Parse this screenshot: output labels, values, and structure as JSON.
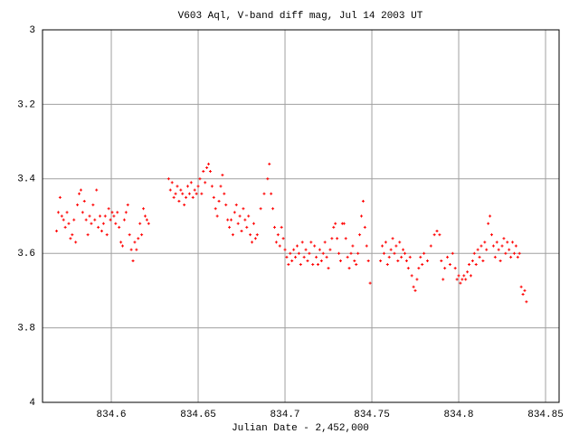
{
  "chart_data": {
    "type": "scatter",
    "title": "V603 Aql, V-band diff mag, Jul 14 2003 UT",
    "x_label": "Julian Date - 2,452,000",
    "color": "#ff0000",
    "grid": true,
    "xlim": [
      834.5604,
      834.8578
    ],
    "xticks": [
      834.6,
      834.65,
      834.7,
      834.75,
      834.8,
      834.85
    ],
    "ylim": [
      4,
      3
    ],
    "yticks": [
      3,
      3.2,
      3.4,
      3.6,
      3.8,
      4
    ],
    "x": [
      834.5685,
      834.5695,
      834.5705,
      834.5715,
      834.5725,
      834.5735,
      834.5745,
      834.5755,
      834.5765,
      834.5775,
      834.5785,
      834.5795,
      834.5805,
      834.5815,
      834.5825,
      834.5835,
      834.5845,
      834.5855,
      834.5865,
      834.5875,
      834.5885,
      834.5895,
      834.5905,
      834.5915,
      834.5925,
      834.5935,
      834.5945,
      834.5955,
      834.5965,
      834.5975,
      834.5985,
      834.5995,
      834.6005,
      834.6015,
      834.6025,
      834.6035,
      834.6045,
      834.6055,
      834.6065,
      834.6075,
      834.6085,
      834.6095,
      834.6105,
      834.6115,
      834.6125,
      834.6135,
      834.6145,
      834.6155,
      834.6165,
      834.6175,
      834.6185,
      834.6195,
      834.6205,
      834.6215,
      834.633,
      834.634,
      834.635,
      834.636,
      834.637,
      834.638,
      834.639,
      834.64,
      834.641,
      834.642,
      834.643,
      834.644,
      834.645,
      834.646,
      834.647,
      834.648,
      834.649,
      834.65,
      834.651,
      834.652,
      834.653,
      834.654,
      834.655,
      834.656,
      834.657,
      834.658,
      834.659,
      834.66,
      834.661,
      834.662,
      834.663,
      834.664,
      834.665,
      834.666,
      834.667,
      834.668,
      834.669,
      834.67,
      834.671,
      834.672,
      834.673,
      834.674,
      834.675,
      834.676,
      834.677,
      834.678,
      834.679,
      834.68,
      834.681,
      834.682,
      834.683,
      834.684,
      834.686,
      834.688,
      834.69,
      834.691,
      834.692,
      834.693,
      834.694,
      834.695,
      834.696,
      834.697,
      834.698,
      834.699,
      834.7,
      834.701,
      834.702,
      834.703,
      834.704,
      834.705,
      834.706,
      834.707,
      834.708,
      834.709,
      834.71,
      834.711,
      834.712,
      834.713,
      834.714,
      834.715,
      834.716,
      834.717,
      834.718,
      834.719,
      834.72,
      834.721,
      834.722,
      834.723,
      834.724,
      834.725,
      834.726,
      834.727,
      834.728,
      834.729,
      834.73,
      834.731,
      834.732,
      834.733,
      834.734,
      834.735,
      834.736,
      834.737,
      834.738,
      834.739,
      834.74,
      834.741,
      834.742,
      834.743,
      834.744,
      834.745,
      834.746,
      834.747,
      834.748,
      834.749,
      834.755,
      834.756,
      834.757,
      834.758,
      834.759,
      834.76,
      834.761,
      834.762,
      834.763,
      834.764,
      834.765,
      834.766,
      834.767,
      834.768,
      834.769,
      834.77,
      834.771,
      834.772,
      834.773,
      834.774,
      834.775,
      834.776,
      834.777,
      834.778,
      834.779,
      834.78,
      834.782,
      834.784,
      834.786,
      834.7875,
      834.789,
      834.79,
      834.791,
      834.792,
      834.7935,
      834.795,
      834.7965,
      834.798,
      834.799,
      834.8,
      834.801,
      834.802,
      834.803,
      834.804,
      834.805,
      834.806,
      834.807,
      834.808,
      834.809,
      834.81,
      834.811,
      834.812,
      834.813,
      834.814,
      834.815,
      834.816,
      834.817,
      834.818,
      834.819,
      834.82,
      834.821,
      834.822,
      834.823,
      834.824,
      834.825,
      834.826,
      834.827,
      834.828,
      834.829,
      834.83,
      834.831,
      834.832,
      834.833,
      834.834,
      834.835,
      834.836,
      834.837,
      834.838,
      834.839
    ],
    "values": [
      3.54,
      3.49,
      3.45,
      3.5,
      3.51,
      3.53,
      3.49,
      3.52,
      3.56,
      3.55,
      3.51,
      3.57,
      3.47,
      3.44,
      3.43,
      3.49,
      3.46,
      3.51,
      3.55,
      3.5,
      3.52,
      3.47,
      3.51,
      3.43,
      3.53,
      3.5,
      3.54,
      3.52,
      3.5,
      3.55,
      3.48,
      3.51,
      3.49,
      3.5,
      3.52,
      3.49,
      3.53,
      3.57,
      3.58,
      3.51,
      3.49,
      3.47,
      3.55,
      3.59,
      3.62,
      3.57,
      3.59,
      3.56,
      3.52,
      3.55,
      3.48,
      3.5,
      3.51,
      3.52,
      3.4,
      3.43,
      3.41,
      3.45,
      3.44,
      3.42,
      3.46,
      3.43,
      3.44,
      3.47,
      3.45,
      3.42,
      3.44,
      3.41,
      3.45,
      3.43,
      3.44,
      3.42,
      3.4,
      3.44,
      3.38,
      3.41,
      3.37,
      3.36,
      3.38,
      3.42,
      3.45,
      3.48,
      3.5,
      3.46,
      3.42,
      3.39,
      3.44,
      3.47,
      3.51,
      3.53,
      3.51,
      3.55,
      3.49,
      3.47,
      3.52,
      3.5,
      3.54,
      3.48,
      3.51,
      3.53,
      3.5,
      3.55,
      3.57,
      3.52,
      3.56,
      3.55,
      3.48,
      3.44,
      3.4,
      3.36,
      3.44,
      3.48,
      3.53,
      3.57,
      3.55,
      3.58,
      3.53,
      3.56,
      3.59,
      3.61,
      3.63,
      3.6,
      3.62,
      3.59,
      3.61,
      3.58,
      3.6,
      3.63,
      3.57,
      3.61,
      3.59,
      3.62,
      3.6,
      3.57,
      3.63,
      3.58,
      3.61,
      3.63,
      3.59,
      3.62,
      3.6,
      3.57,
      3.61,
      3.64,
      3.59,
      3.56,
      3.53,
      3.52,
      3.56,
      3.6,
      3.62,
      3.52,
      3.52,
      3.56,
      3.61,
      3.64,
      3.6,
      3.58,
      3.62,
      3.63,
      3.6,
      3.55,
      3.5,
      3.46,
      3.53,
      3.58,
      3.62,
      3.68,
      3.62,
      3.58,
      3.6,
      3.57,
      3.63,
      3.61,
      3.59,
      3.56,
      3.6,
      3.58,
      3.62,
      3.57,
      3.61,
      3.59,
      3.6,
      3.62,
      3.64,
      3.61,
      3.66,
      3.69,
      3.7,
      3.67,
      3.64,
      3.61,
      3.63,
      3.6,
      3.62,
      3.58,
      3.55,
      3.54,
      3.55,
      3.62,
      3.67,
      3.64,
      3.61,
      3.63,
      3.6,
      3.64,
      3.67,
      3.66,
      3.68,
      3.67,
      3.66,
      3.67,
      3.65,
      3.63,
      3.66,
      3.62,
      3.6,
      3.63,
      3.59,
      3.61,
      3.58,
      3.62,
      3.57,
      3.59,
      3.52,
      3.5,
      3.55,
      3.58,
      3.61,
      3.57,
      3.59,
      3.62,
      3.58,
      3.56,
      3.6,
      3.57,
      3.59,
      3.61,
      3.57,
      3.6,
      3.58,
      3.61,
      3.6,
      3.69,
      3.71,
      3.7,
      3.73
    ]
  }
}
